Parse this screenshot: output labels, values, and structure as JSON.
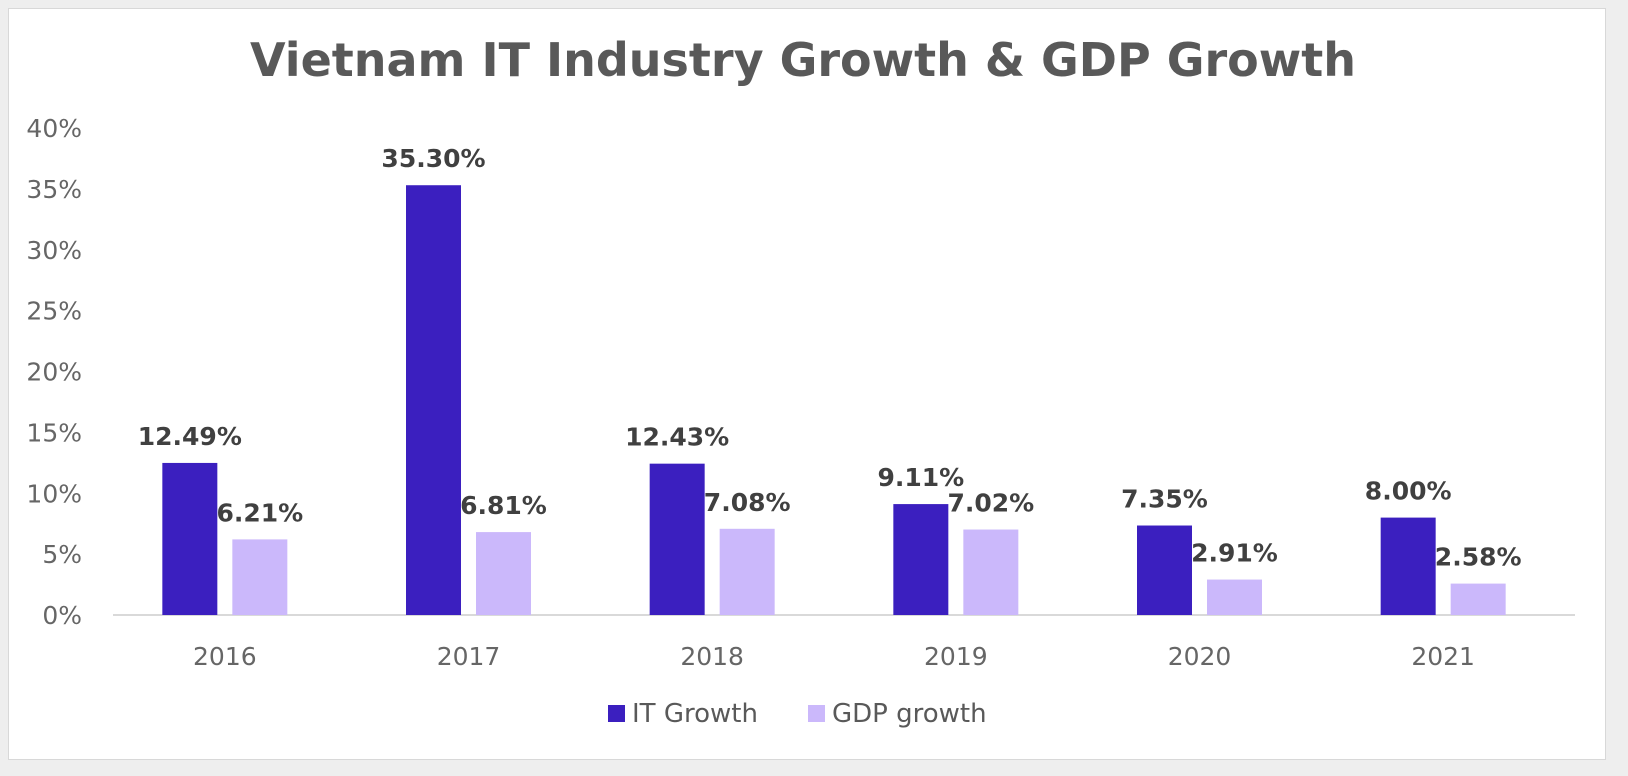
{
  "chart_data": {
    "type": "bar",
    "title": "Vietnam IT Industry Growth & GDP Growth",
    "xlabel": "",
    "ylabel": "",
    "categories": [
      "2016",
      "2017",
      "2018",
      "2019",
      "2020",
      "2021"
    ],
    "series": [
      {
        "name": "IT Growth",
        "color": "#3b1fbf",
        "values": [
          12.49,
          35.3,
          12.43,
          9.11,
          7.35,
          8.0
        ],
        "labels": [
          "12.49%",
          "35.30%",
          "12.43%",
          "9.11%",
          "7.35%",
          "8.00%"
        ]
      },
      {
        "name": "GDP growth",
        "color": "#cbb8fb",
        "values": [
          6.21,
          6.81,
          7.08,
          7.02,
          2.91,
          2.58
        ],
        "labels": [
          "6.21%",
          "6.81%",
          "7.08%",
          "7.02%",
          "2.91%",
          "2.58%"
        ]
      }
    ],
    "ylim": [
      0,
      40
    ],
    "yticks": [
      0,
      5,
      10,
      15,
      20,
      25,
      30,
      35,
      40
    ],
    "ytick_labels": [
      "0%",
      "5%",
      "10%",
      "15%",
      "20%",
      "25%",
      "30%",
      "35%",
      "40%"
    ],
    "grid": false,
    "legend_position": "bottom"
  }
}
